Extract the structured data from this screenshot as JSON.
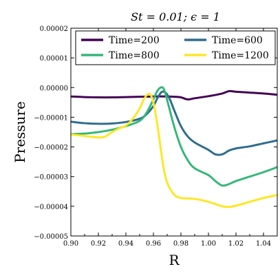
{
  "chart_data": {
    "type": "line",
    "title": "St = 0.01; ϵ = 1",
    "xlabel": "R",
    "ylabel": "Pressure",
    "xlim": [
      0.9,
      1.05
    ],
    "ylim": [
      -5e-05,
      2e-05
    ],
    "x_ticks": [
      "0.90",
      "0.92",
      "0.94",
      "0.96",
      "0.98",
      "1.00",
      "1.02",
      "1.04"
    ],
    "y_ticks": [
      "−0.00005",
      "−0.00004",
      "−0.00003",
      "−0.00002",
      "−0.00001",
      "0.00000",
      "0.00001",
      "0.00002"
    ],
    "grid": false,
    "legend_location": "top",
    "series": [
      {
        "name": "Time=200",
        "color": "#440154",
        "x": [
          0.9,
          0.91,
          0.92,
          0.93,
          0.94,
          0.95,
          0.96,
          0.97,
          0.975,
          0.98,
          0.985,
          0.99,
          1.0,
          1.01,
          1.015,
          1.02,
          1.03,
          1.04,
          1.05
        ],
        "y": [
          -3e-06,
          -3.2e-06,
          -3.3e-06,
          -3.3e-06,
          -3.2e-06,
          -3.1e-06,
          -3e-06,
          -3e-06,
          -3.1e-06,
          -3.3e-06,
          -4e-06,
          -3.6e-06,
          -2.9e-06,
          -2e-06,
          -1.2e-06,
          -1.4e-06,
          -1.7e-06,
          -2e-06,
          -2.4e-06
        ]
      },
      {
        "name": "Time=600",
        "color": "#2f6d8e",
        "x": [
          0.9,
          0.91,
          0.92,
          0.93,
          0.94,
          0.95,
          0.955,
          0.96,
          0.963,
          0.966,
          0.969,
          0.972,
          0.975,
          0.98,
          0.985,
          0.99,
          1.0,
          1.005,
          1.01,
          1.015,
          1.02,
          1.03,
          1.04,
          1.05
        ],
        "y": [
          -1.15e-05,
          -1.2e-05,
          -1.22e-05,
          -1.21e-05,
          -1.16e-05,
          -1.05e-05,
          -9e-06,
          -6.2e-06,
          -3.5e-06,
          -1.5e-06,
          -1.8e-06,
          -4e-06,
          -7.5e-06,
          -1.3e-05,
          -1.65e-05,
          -1.85e-05,
          -2.1e-05,
          -2.25e-05,
          -2.25e-05,
          -2.12e-05,
          -2.05e-05,
          -1.98e-05,
          -1.88e-05,
          -1.78e-05
        ]
      },
      {
        "name": "Time=800",
        "color": "#35b779",
        "x": [
          0.9,
          0.91,
          0.92,
          0.93,
          0.94,
          0.95,
          0.955,
          0.96,
          0.963,
          0.966,
          0.968,
          0.971,
          0.975,
          0.98,
          0.985,
          0.99,
          1.0,
          1.005,
          1.01,
          1.015,
          1.02,
          1.03,
          1.04,
          1.05
        ],
        "y": [
          -1.57e-05,
          -1.55e-05,
          -1.5e-05,
          -1.42e-05,
          -1.3e-05,
          -1.12e-05,
          -8.5e-06,
          -4e-06,
          -1e-06,
          1e-07,
          -1e-06,
          -6e-06,
          -1.3e-05,
          -2e-05,
          -2.45e-05,
          -2.72e-05,
          -2.95e-05,
          -3.15e-05,
          -3.3e-05,
          -3.25e-05,
          -3.15e-05,
          -3e-05,
          -2.85e-05,
          -2.68e-05
        ]
      },
      {
        "name": "Time=1200",
        "color": "#fde725",
        "x": [
          0.9,
          0.91,
          0.92,
          0.925,
          0.93,
          0.935,
          0.94,
          0.945,
          0.95,
          0.953,
          0.956,
          0.958,
          0.96,
          0.963,
          0.967,
          0.97,
          0.975,
          0.98,
          0.99,
          1.0,
          1.01,
          1.015,
          1.02,
          1.03,
          1.04,
          1.05
        ],
        "y": [
          -1.58e-05,
          -1.63e-05,
          -1.68e-05,
          -1.65e-05,
          -1.5e-05,
          -1.38e-05,
          -1.28e-05,
          -1.05e-05,
          -7e-06,
          -4e-06,
          -2.2e-06,
          -2.5e-06,
          -5e-06,
          -1.3e-05,
          -2.6e-05,
          -3.2e-05,
          -3.6e-05,
          -3.72e-05,
          -3.75e-05,
          -3.85e-05,
          -4e-05,
          -4.02e-05,
          -3.98e-05,
          -3.85e-05,
          -3.72e-05,
          -3.62e-05
        ]
      }
    ]
  }
}
